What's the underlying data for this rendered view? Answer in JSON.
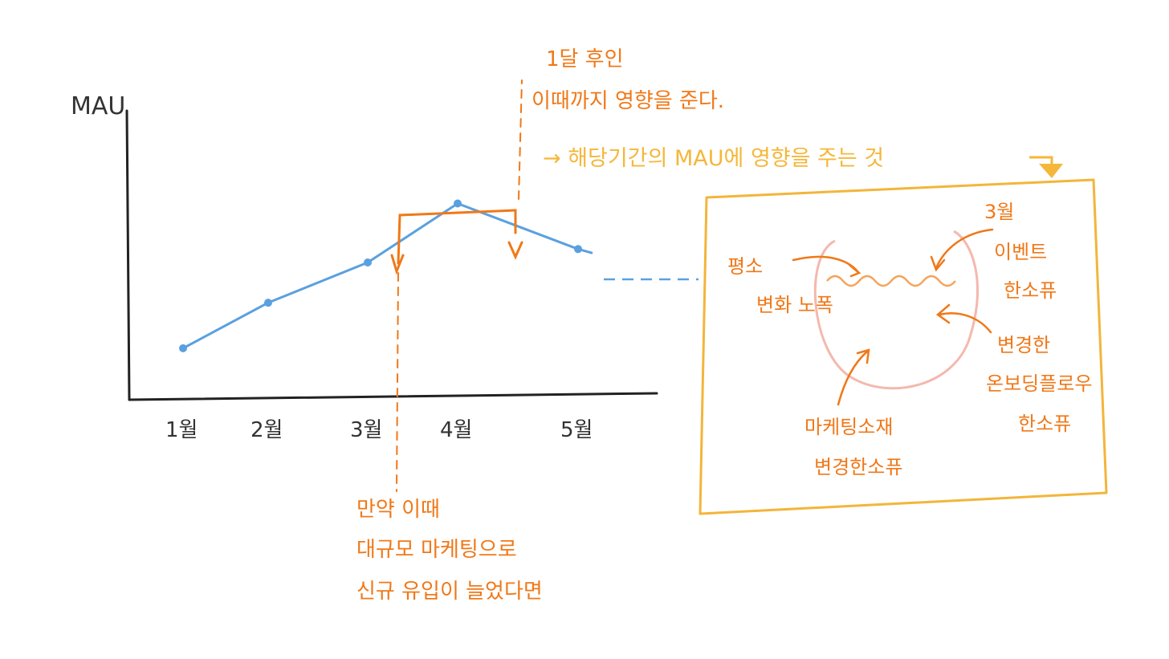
{
  "chart_data": {
    "type": "line",
    "ylabel": "MAU",
    "categories": [
      "1월",
      "2월",
      "3월",
      "4월",
      "5월"
    ],
    "values": [
      18,
      35,
      50,
      72,
      55
    ],
    "ylim": [
      0,
      100
    ],
    "projection": "dashed continuation after 5월",
    "grid": false
  },
  "annotations": {
    "confirm_title": "1달 후인",
    "confirm_line2": "이때까지 영향을 준다.",
    "arrow_note": "→ 해당기간의 MAU에 영향을 주는 것",
    "bottom_line1": "만약 이때",
    "bottom_line2": "대규모 마케팅으로",
    "bottom_line3": "신규 유입이 늘었다면",
    "factor_left_1": "평소",
    "factor_left_2": "변화 노폭",
    "factor_top_1": "3월",
    "factor_top_2": "이벤트",
    "factor_top_3": "한소퓨",
    "factor_right_1": "변경한",
    "factor_right_2": "온보딩플로우",
    "factor_right_3": "한소퓨",
    "factor_bottom_1": "마케팅소재",
    "factor_bottom_2": "변경한소퓨"
  },
  "colors": {
    "axis": "#222222",
    "line": "#5aa0e0",
    "annotation": "#f07818",
    "note": "#f5b73a",
    "box": "#f3b53a",
    "circle": "#f4b8ae",
    "squiggle": "#f5a35a",
    "label": "#333333"
  }
}
